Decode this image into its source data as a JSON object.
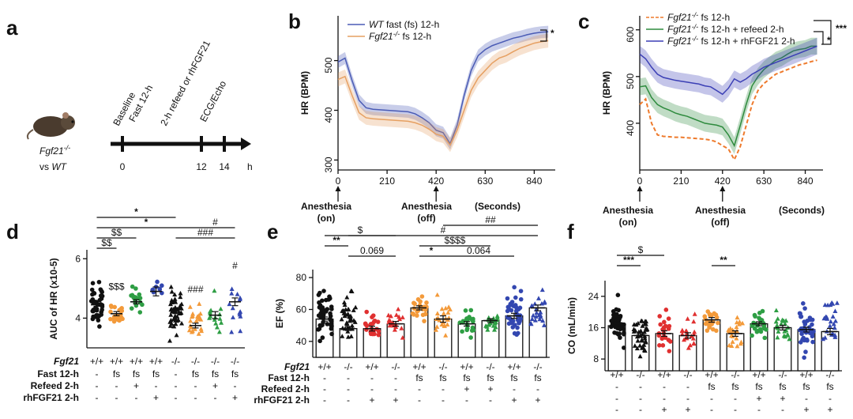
{
  "panels": {
    "a": {
      "label": "a",
      "timeline": {
        "labels": [
          "Baseline",
          "Fast 12-h",
          "2-h refeed or rhFGF21",
          "ECG/Echo"
        ],
        "ticks": [
          "0",
          "12",
          "14"
        ],
        "unit": "h",
        "group1": "Fgf21",
        "group1_sup": "-/-",
        "group2_prefix": "vs ",
        "group2": "WT"
      }
    },
    "b": {
      "label": "b",
      "significance": "*",
      "annotations": {
        "start": "Anesthesia",
        "start_state": "(on)",
        "stop": "Anesthesia",
        "stop_state": "(off)",
        "seconds": "(Seconds)"
      }
    },
    "c": {
      "label": "c",
      "significance": [
        "*",
        "***"
      ],
      "annotations": {
        "start": "Anesthesia",
        "start_state": "(on)",
        "stop": "Anesthesia",
        "stop_state": "(off)",
        "seconds": "(Seconds)"
      }
    },
    "d": {
      "label": "d"
    },
    "e": {
      "label": "e"
    },
    "f": {
      "label": "f"
    }
  },
  "chart_data": [
    {
      "id": "b",
      "type": "line",
      "title": "",
      "xlabel": "",
      "ylabel": "HR (BPM)",
      "xlim": [
        0,
        930
      ],
      "ylim": [
        280,
        590
      ],
      "xticks": [
        "0",
        "210",
        "420",
        "630",
        "840"
      ],
      "yticks": [
        "300",
        "400",
        "500"
      ],
      "x": [
        0,
        30,
        60,
        90,
        120,
        150,
        180,
        210,
        240,
        270,
        300,
        330,
        360,
        390,
        420,
        450,
        480,
        510,
        540,
        570,
        600,
        630,
        660,
        690,
        720,
        750,
        780,
        810,
        840,
        870,
        900
      ],
      "series": [
        {
          "name": "WT fast (fs) 12-h",
          "color": "#4a5bb5",
          "values": [
            497,
            505,
            460,
            420,
            405,
            402,
            401,
            400,
            399,
            398,
            397,
            393,
            385,
            375,
            360,
            355,
            333,
            370,
            430,
            480,
            510,
            522,
            530,
            535,
            540,
            545,
            548,
            552,
            555,
            557,
            558
          ],
          "band": 12
        },
        {
          "name": "Fgf21-/- fs 12-h",
          "color": "#e6a062",
          "values": [
            462,
            468,
            430,
            395,
            385,
            383,
            382,
            381,
            380,
            379,
            378,
            375,
            370,
            362,
            352,
            348,
            330,
            360,
            400,
            440,
            465,
            480,
            495,
            505,
            510,
            518,
            525,
            530,
            535,
            538,
            540
          ],
          "band": 14
        }
      ]
    },
    {
      "id": "c",
      "type": "line",
      "title": "",
      "xlabel": "",
      "ylabel": "HR (BPM)",
      "xlim": [
        0,
        930
      ],
      "ylim": [
        300,
        630
      ],
      "xticks": [
        "0",
        "210",
        "420",
        "630",
        "840"
      ],
      "yticks": [
        "400",
        "500",
        "600"
      ],
      "x": [
        0,
        30,
        60,
        90,
        120,
        150,
        180,
        210,
        240,
        270,
        300,
        330,
        360,
        390,
        420,
        450,
        480,
        510,
        540,
        570,
        600,
        630,
        660,
        690,
        720,
        750,
        780,
        810,
        840,
        870,
        900
      ],
      "series": [
        {
          "name": "Fgf21-/- fs 12-h",
          "color": "#ee7a2c",
          "dashed": true,
          "values": [
            440,
            452,
            400,
            375,
            372,
            371,
            370,
            370,
            369,
            368,
            367,
            366,
            364,
            360,
            352,
            345,
            322,
            350,
            395,
            440,
            470,
            485,
            495,
            505,
            510,
            515,
            520,
            525,
            528,
            532,
            535
          ],
          "band": 0
        },
        {
          "name": "Fgf21-/- fs 12-h + refeed 2-h",
          "color": "#2e8b3e",
          "values": [
            478,
            480,
            455,
            440,
            433,
            428,
            422,
            418,
            415,
            410,
            405,
            400,
            398,
            396,
            392,
            375,
            352,
            395,
            440,
            480,
            500,
            515,
            525,
            535,
            540,
            548,
            555,
            558,
            560,
            565,
            565
          ],
          "band": 18
        },
        {
          "name": "Fgf21-/- fs 12-h + rhFGF21 2-h",
          "color": "#3b3fb5",
          "values": [
            548,
            538,
            520,
            505,
            498,
            495,
            492,
            490,
            488,
            486,
            484,
            480,
            478,
            470,
            462,
            475,
            495,
            488,
            495,
            505,
            512,
            520,
            525,
            530,
            535,
            540,
            545,
            550,
            555,
            560,
            565
          ],
          "band": 18
        }
      ]
    },
    {
      "id": "d",
      "type": "scatter",
      "title": "",
      "xlabel": "",
      "ylabel": "AUC of HR (x10^-5)",
      "ylim": [
        3.0,
        6.3
      ],
      "yticks": [
        "4",
        "6"
      ],
      "groups": [
        {
          "genotype": "+/+",
          "fast": "-",
          "refeed": "-",
          "rh": "-",
          "color": "#111111",
          "marker": "circle",
          "mean": 4.45,
          "sem": 0.05,
          "n": 50,
          "min": 3.4,
          "max": 5.6,
          "annot": ""
        },
        {
          "genotype": "+/+",
          "fast": "fs",
          "refeed": "-",
          "rh": "-",
          "color": "#f39a3a",
          "marker": "circle",
          "mean": 4.15,
          "sem": 0.07,
          "n": 22,
          "min": 3.6,
          "max": 4.8,
          "annot": "$$$"
        },
        {
          "genotype": "+/+",
          "fast": "fs",
          "refeed": "+",
          "rh": "-",
          "color": "#2e9e44",
          "marker": "circle",
          "mean": 4.55,
          "sem": 0.07,
          "n": 18,
          "min": 4.0,
          "max": 5.3,
          "annot": ""
        },
        {
          "genotype": "+/+",
          "fast": "fs",
          "refeed": "-",
          "rh": "+",
          "color": "#3347b0",
          "marker": "circle",
          "mean": 4.9,
          "sem": 0.15,
          "n": 8,
          "min": 4.4,
          "max": 5.7,
          "annot": ""
        },
        {
          "genotype": "-/-",
          "fast": "-",
          "refeed": "-",
          "rh": "-",
          "color": "#111111",
          "marker": "triangle",
          "mean": 4.3,
          "sem": 0.05,
          "n": 55,
          "min": 3.1,
          "max": 5.4,
          "annot": ""
        },
        {
          "genotype": "-/-",
          "fast": "fs",
          "refeed": "-",
          "rh": "-",
          "color": "#f39a3a",
          "marker": "triangle",
          "mean": 3.75,
          "sem": 0.08,
          "n": 22,
          "min": 3.0,
          "max": 4.7,
          "annot": "###"
        },
        {
          "genotype": "-/-",
          "fast": "fs",
          "refeed": "+",
          "rh": "-",
          "color": "#2e9e44",
          "marker": "triangle",
          "mean": 4.1,
          "sem": 0.12,
          "n": 15,
          "min": 3.2,
          "max": 5.1,
          "annot": ""
        },
        {
          "genotype": "-/-",
          "fast": "fs",
          "refeed": "-",
          "rh": "+",
          "color": "#3347b0",
          "marker": "triangle",
          "mean": 4.55,
          "sem": 0.13,
          "n": 14,
          "min": 3.4,
          "max": 5.5,
          "annot": "#"
        }
      ],
      "brackets": [
        {
          "from": 0,
          "to": 4,
          "level": 5,
          "label": "*"
        },
        {
          "from": 0,
          "to": 5,
          "level": 4,
          "label": "*"
        },
        {
          "from": 0,
          "to": 2,
          "level": 3,
          "label": "$$"
        },
        {
          "from": 0,
          "to": 1,
          "level": 2,
          "label": "$$"
        },
        {
          "from": 5,
          "to": 7,
          "level": 4,
          "label": "#"
        },
        {
          "from": 4,
          "to": 7,
          "level": 3,
          "label": "###"
        }
      ],
      "row_labels": [
        "Fgf21",
        "Fast 12-h",
        "Refeed 2-h",
        "rhFGF21 2-h"
      ]
    },
    {
      "id": "e",
      "type": "bar",
      "title": "",
      "xlabel": "",
      "ylabel": "EF (%)",
      "ylim": [
        30,
        85
      ],
      "yticks": [
        "40",
        "60",
        "80"
      ],
      "groups": [
        {
          "genotype": "+/+",
          "fast": "-",
          "refeed": "-",
          "rh": "-",
          "color": "#111111",
          "marker": "circle",
          "mean": 54,
          "sem": 1.3,
          "n": 45,
          "min": 36,
          "max": 80
        },
        {
          "genotype": "-/-",
          "fast": "-",
          "refeed": "-",
          "rh": "-",
          "color": "#111111",
          "marker": "triangle",
          "mean": 48,
          "sem": 1.2,
          "n": 40,
          "min": 35,
          "max": 77
        },
        {
          "genotype": "+/+",
          "fast": "-",
          "refeed": "-",
          "rh": "+",
          "color": "#e03030",
          "marker": "circle",
          "mean": 48,
          "sem": 1.5,
          "n": 22,
          "min": 36,
          "max": 64
        },
        {
          "genotype": "-/-",
          "fast": "-",
          "refeed": "-",
          "rh": "+",
          "color": "#e03030",
          "marker": "triangle",
          "mean": 51,
          "sem": 1.5,
          "n": 20,
          "min": 40,
          "max": 64
        },
        {
          "genotype": "+/+",
          "fast": "fs",
          "refeed": "-",
          "rh": "-",
          "color": "#f39a3a",
          "marker": "circle",
          "mean": 61,
          "sem": 1.3,
          "n": 22,
          "min": 50,
          "max": 72
        },
        {
          "genotype": "-/-",
          "fast": "fs",
          "refeed": "-",
          "rh": "-",
          "color": "#f39a3a",
          "marker": "triangle",
          "mean": 54,
          "sem": 2.0,
          "n": 22,
          "min": 38,
          "max": 75
        },
        {
          "genotype": "+/+",
          "fast": "fs",
          "refeed": "+",
          "rh": "-",
          "color": "#2e9e44",
          "marker": "circle",
          "mean": 51,
          "sem": 1.4,
          "n": 24,
          "min": 40,
          "max": 64
        },
        {
          "genotype": "-/-",
          "fast": "fs",
          "refeed": "+",
          "rh": "-",
          "color": "#2e9e44",
          "marker": "triangle",
          "mean": 53,
          "sem": 1.2,
          "n": 20,
          "min": 44,
          "max": 62
        },
        {
          "genotype": "+/+",
          "fast": "fs",
          "refeed": "-",
          "rh": "+",
          "color": "#3347b0",
          "marker": "circle",
          "mean": 56,
          "sem": 1.6,
          "n": 40,
          "min": 36,
          "max": 78
        },
        {
          "genotype": "-/-",
          "fast": "fs",
          "refeed": "-",
          "rh": "+",
          "color": "#3347b0",
          "marker": "triangle",
          "mean": 61,
          "sem": 1.8,
          "n": 24,
          "min": 40,
          "max": 78
        }
      ],
      "brackets": [
        {
          "from": 0,
          "to": 3,
          "level": 5,
          "label": "$"
        },
        {
          "from": 0,
          "to": 1,
          "level": 4,
          "label": "**"
        },
        {
          "from": 1,
          "to": 3,
          "level": 3,
          "label": "0.069"
        },
        {
          "from": 5,
          "to": 9,
          "level": 6,
          "label": "##"
        },
        {
          "from": 1,
          "to": 9,
          "level": 5,
          "label": "#"
        },
        {
          "from": 4,
          "to": 7,
          "level": 4,
          "label": "$$$$"
        },
        {
          "from": 4,
          "to": 5,
          "level": 3,
          "label": "*"
        },
        {
          "from": 5,
          "to": 8,
          "level": 3,
          "label": "0.064"
        }
      ],
      "row_labels": [
        "Fgf21",
        "Fast 12-h",
        "Refeed 2-h",
        "rhFGF21 2-h"
      ]
    },
    {
      "id": "f",
      "type": "bar",
      "title": "",
      "xlabel": "",
      "ylabel": "CO (mL/min)",
      "ylim": [
        5,
        28
      ],
      "yticks": [
        "8",
        "16",
        "24"
      ],
      "groups": [
        {
          "genotype": "+/+",
          "fast": "-",
          "refeed": "-",
          "rh": "-",
          "color": "#111111",
          "marker": "circle",
          "mean": 16.5,
          "sem": 0.5,
          "n": 45,
          "min": 10,
          "max": 25
        },
        {
          "genotype": "-/-",
          "fast": "-",
          "refeed": "-",
          "rh": "-",
          "color": "#111111",
          "marker": "triangle",
          "mean": 14,
          "sem": 0.5,
          "n": 40,
          "min": 7,
          "max": 22
        },
        {
          "genotype": "+/+",
          "fast": "-",
          "refeed": "-",
          "rh": "+",
          "color": "#e03030",
          "marker": "circle",
          "mean": 14.5,
          "sem": 0.7,
          "n": 22,
          "min": 8,
          "max": 22
        },
        {
          "genotype": "-/-",
          "fast": "-",
          "refeed": "-",
          "rh": "+",
          "color": "#e03030",
          "marker": "triangle",
          "mean": 14,
          "sem": 0.7,
          "n": 20,
          "min": 9,
          "max": 20
        },
        {
          "genotype": "+/+",
          "fast": "fs",
          "refeed": "-",
          "rh": "-",
          "color": "#f39a3a",
          "marker": "circle",
          "mean": 18,
          "sem": 0.6,
          "n": 22,
          "min": 13,
          "max": 23
        },
        {
          "genotype": "-/-",
          "fast": "fs",
          "refeed": "-",
          "rh": "-",
          "color": "#f39a3a",
          "marker": "triangle",
          "mean": 14.5,
          "sem": 0.7,
          "n": 22,
          "min": 8,
          "max": 21
        },
        {
          "genotype": "+/+",
          "fast": "fs",
          "refeed": "+",
          "rh": "-",
          "color": "#2e9e44",
          "marker": "circle",
          "mean": 17,
          "sem": 0.5,
          "n": 24,
          "min": 12,
          "max": 22
        },
        {
          "genotype": "-/-",
          "fast": "fs",
          "refeed": "+",
          "rh": "-",
          "color": "#2e9e44",
          "marker": "triangle",
          "mean": 16,
          "sem": 0.6,
          "n": 22,
          "min": 10,
          "max": 22
        },
        {
          "genotype": "+/+",
          "fast": "fs",
          "refeed": "-",
          "rh": "+",
          "color": "#3347b0",
          "marker": "circle",
          "mean": 15.5,
          "sem": 0.6,
          "n": 40,
          "min": 8,
          "max": 24
        },
        {
          "genotype": "-/-",
          "fast": "fs",
          "refeed": "-",
          "rh": "+",
          "color": "#3347b0",
          "marker": "triangle",
          "mean": 15,
          "sem": 0.8,
          "n": 24,
          "min": 7,
          "max": 26
        }
      ],
      "brackets": [
        {
          "from": 0,
          "to": 2,
          "level": 4,
          "label": "$"
        },
        {
          "from": 0,
          "to": 1,
          "level": 3,
          "label": "***"
        },
        {
          "from": 4,
          "to": 5,
          "level": 3,
          "label": "**"
        }
      ]
    }
  ]
}
